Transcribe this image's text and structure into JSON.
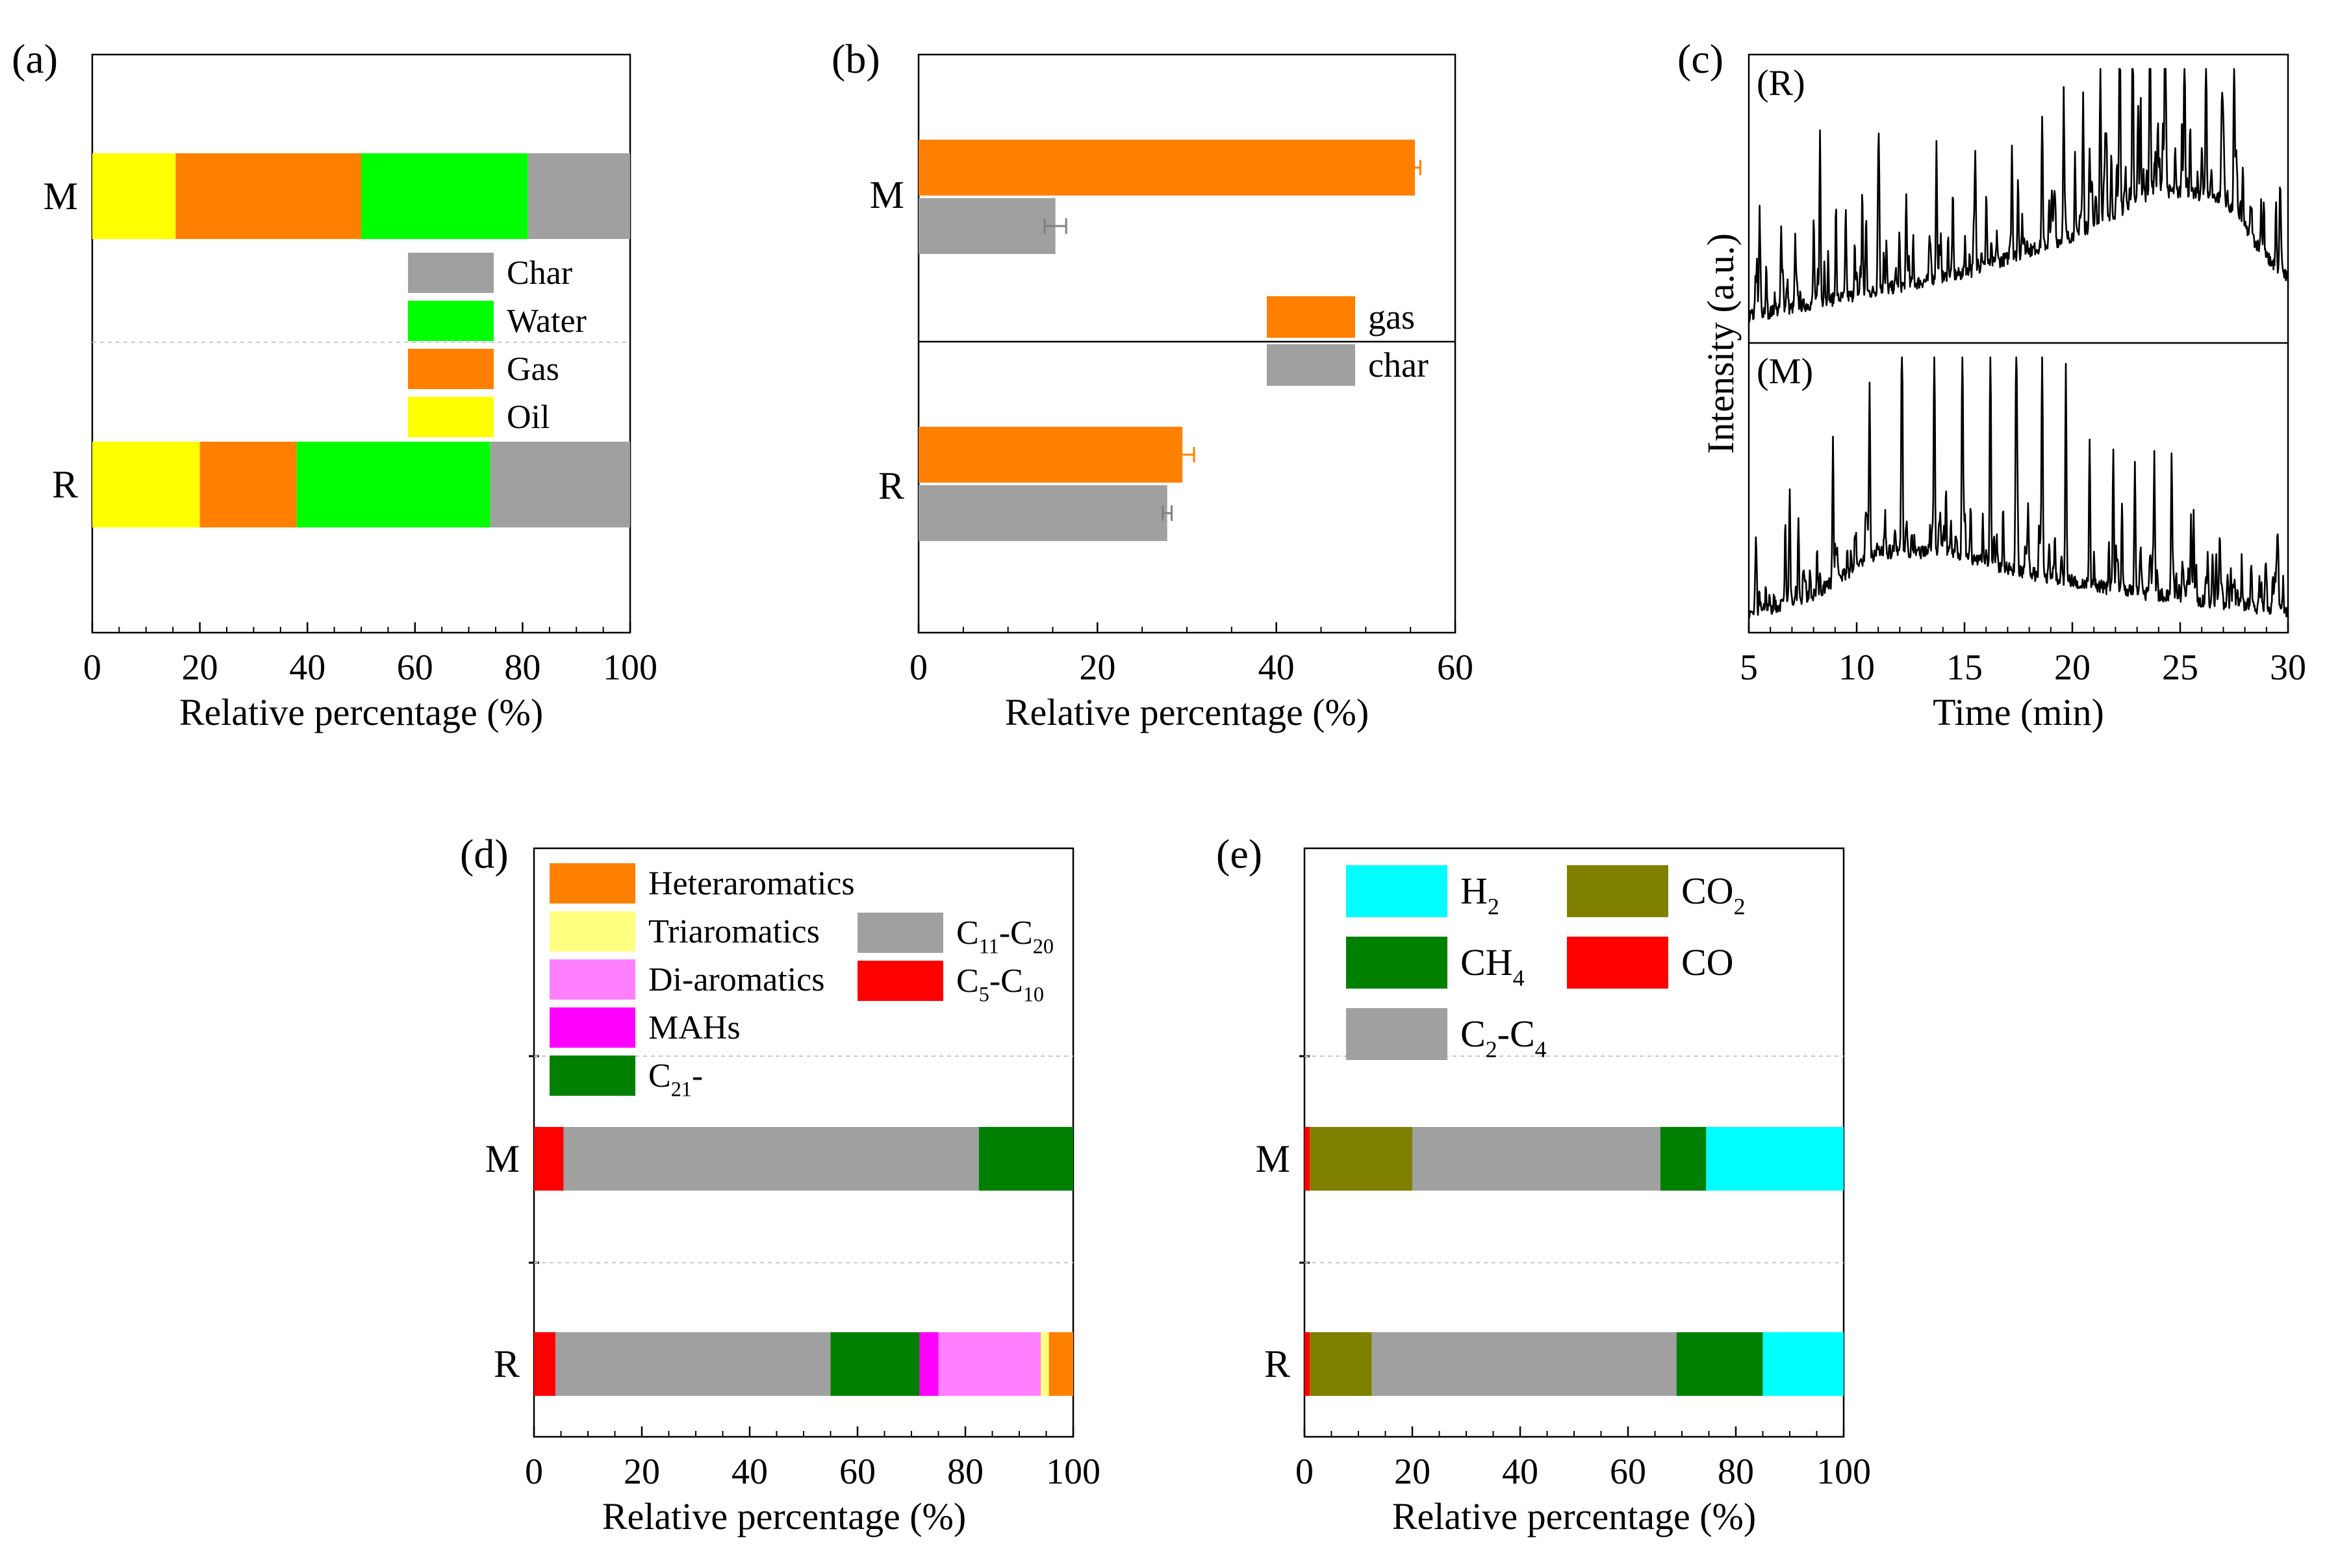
{
  "chart_data": [
    {
      "id": "a",
      "panel_label": "(a)",
      "type": "bar",
      "orientation": "horizontal",
      "stacked": true,
      "categories": [
        "M",
        "R"
      ],
      "series": [
        {
          "name": "Oil",
          "color": "#ffff00",
          "values": [
            15.5,
            20.0
          ]
        },
        {
          "name": "Gas",
          "color": "#ff8000",
          "values": [
            34.5,
            18.0
          ]
        },
        {
          "name": "Water",
          "color": "#00ff00",
          "values": [
            31.0,
            36.0
          ]
        },
        {
          "name": "Char",
          "color": "#a0a0a0",
          "values": [
            19.0,
            26.0
          ]
        }
      ],
      "legend_order": [
        "Char",
        "Water",
        "Gas",
        "Oil"
      ],
      "xlabel": "Relative percentage (%)",
      "xlim": [
        0,
        100
      ],
      "xticks": [
        "0",
        "20",
        "40",
        "60",
        "80",
        "100"
      ],
      "divider": "dashed"
    },
    {
      "id": "b",
      "panel_label": "(b)",
      "type": "bar",
      "orientation": "horizontal",
      "stacked": false,
      "categories": [
        "M",
        "R"
      ],
      "series": [
        {
          "name": "gas",
          "color": "#ff8000",
          "values": [
            55.5,
            29.5
          ],
          "errors": [
            0.6,
            1.3
          ]
        },
        {
          "name": "char",
          "color": "#a0a0a0",
          "values": [
            15.3,
            27.8
          ],
          "errors": [
            1.2,
            0.5
          ]
        }
      ],
      "legend_order": [
        "gas",
        "char"
      ],
      "xlabel": "Relative percentage (%)",
      "xlim": [
        0,
        60
      ],
      "xticks": [
        "0",
        "20",
        "40",
        "60"
      ],
      "divider": "solid"
    },
    {
      "id": "c",
      "panel_label": "(c)",
      "type": "line",
      "series": [
        {
          "name": "(R)",
          "color": "#000000",
          "seed": 7,
          "baseline": [
            [
              5,
              0.08
            ],
            [
              10,
              0.16
            ],
            [
              15,
              0.24
            ],
            [
              20,
              0.38
            ],
            [
              24,
              0.55
            ],
            [
              27,
              0.52
            ],
            [
              29,
              0.3
            ],
            [
              30,
              0.22
            ]
          ],
          "peaks": [
            [
              5.5,
              0.38
            ],
            [
              6.5,
              0.3
            ],
            [
              8.3,
              0.55
            ],
            [
              9.5,
              0.28
            ],
            [
              11,
              0.46
            ],
            [
              12.3,
              0.32
            ],
            [
              13.7,
              0.5
            ],
            [
              15.5,
              0.45
            ],
            [
              17.2,
              0.42
            ],
            [
              18.6,
              0.5
            ],
            [
              19.6,
              0.55
            ],
            [
              20.5,
              0.5
            ],
            [
              21.3,
              0.6
            ],
            [
              22.2,
              0.78
            ],
            [
              22.8,
              0.72
            ],
            [
              23.6,
              0.97
            ],
            [
              24.3,
              0.68
            ],
            [
              25.2,
              0.62
            ],
            [
              26.2,
              0.58
            ],
            [
              27.5,
              0.52
            ]
          ]
        },
        {
          "name": "(M)",
          "color": "#000000",
          "seed": 19,
          "baseline": [
            [
              5,
              0.05
            ],
            [
              8,
              0.12
            ],
            [
              11,
              0.28
            ],
            [
              14,
              0.28
            ],
            [
              18,
              0.2
            ],
            [
              22,
              0.14
            ],
            [
              26,
              0.1
            ],
            [
              30,
              0.06
            ]
          ],
          "peaks": [
            [
              7.3,
              0.3
            ],
            [
              8.9,
              0.55
            ],
            [
              10.6,
              0.65
            ],
            [
              12.1,
              0.95
            ],
            [
              13.6,
              0.82
            ],
            [
              14.9,
              0.88
            ],
            [
              16.2,
              0.9
            ],
            [
              17.4,
              0.8
            ],
            [
              18.6,
              0.88
            ],
            [
              19.7,
              0.8
            ],
            [
              20.8,
              0.55
            ],
            [
              21.9,
              0.52
            ],
            [
              22.9,
              0.48
            ],
            [
              23.8,
              0.48
            ],
            [
              24.6,
              0.45
            ],
            [
              25.5,
              0.28
            ],
            [
              26.5,
              0.2
            ],
            [
              28.3,
              0.15
            ]
          ]
        }
      ],
      "xlabel": "Time (min)",
      "ylabel": "Intensity (a.u.)",
      "xlim": [
        5,
        30
      ],
      "xticks": [
        "5",
        "10",
        "15",
        "20",
        "25",
        "30"
      ]
    },
    {
      "id": "d",
      "panel_label": "(d)",
      "type": "bar",
      "orientation": "horizontal",
      "stacked": true,
      "categories": [
        "M",
        "R"
      ],
      "series": [
        {
          "name": "C5-C10",
          "color": "#ff0000",
          "values": [
            5.5,
            4.0
          ]
        },
        {
          "name": "C11-C20",
          "color": "#a0a0a0",
          "values": [
            77.0,
            51.0
          ]
        },
        {
          "name": "C21-",
          "color": "#008000",
          "values": [
            17.5,
            16.5
          ]
        },
        {
          "name": "MAHs",
          "color": "#ff00ff",
          "values": [
            0,
            3.5
          ]
        },
        {
          "name": "Di-aromatics",
          "color": "#ff80ff",
          "values": [
            0,
            19.0
          ]
        },
        {
          "name": "Triaromatics",
          "color": "#ffff80",
          "values": [
            0,
            1.5
          ]
        },
        {
          "name": "Heteraromatics",
          "color": "#ff8000",
          "values": [
            0,
            4.5
          ]
        }
      ],
      "legend_col1": [
        "Heteraromatics",
        "Triaromatics",
        "Di-aromatics",
        "MAHs",
        "C21-"
      ],
      "legend_col2": [
        "C11-C20",
        "C5-C10"
      ],
      "xlabel": "Relative percentage (%)",
      "xlim": [
        0,
        100
      ],
      "xticks": [
        "0",
        "20",
        "40",
        "60",
        "80",
        "100"
      ]
    },
    {
      "id": "e",
      "panel_label": "(e)",
      "type": "bar",
      "orientation": "horizontal",
      "stacked": true,
      "categories": [
        "M",
        "R"
      ],
      "series": [
        {
          "name": "CO",
          "color": "#ff0000",
          "values": [
            1.0,
            1.0
          ]
        },
        {
          "name": "CO2",
          "color": "#808000",
          "values": [
            19.0,
            11.5
          ]
        },
        {
          "name": "C2-C4",
          "color": "#a0a0a0",
          "values": [
            46.0,
            56.5
          ]
        },
        {
          "name": "CH4",
          "color": "#008000",
          "values": [
            8.5,
            16.0
          ]
        },
        {
          "name": "H2",
          "color": "#00ffff",
          "values": [
            25.5,
            15.0
          ]
        }
      ],
      "legend_col1": [
        "H2",
        "CH4",
        "C2-C4"
      ],
      "legend_col2": [
        "CO2",
        "CO"
      ],
      "xlabel": "Relative percentage (%)",
      "xlim": [
        0,
        100
      ],
      "xticks": [
        "0",
        "20",
        "40",
        "60",
        "80",
        "100"
      ]
    }
  ]
}
